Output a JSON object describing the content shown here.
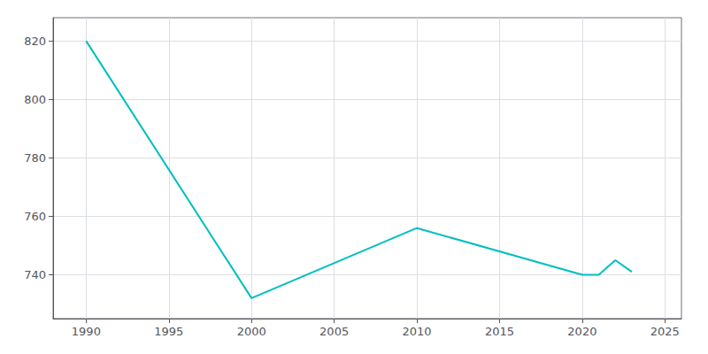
{
  "chart_data": {
    "type": "line",
    "x": [
      1990,
      2000,
      2010,
      2020,
      2021,
      2022,
      2023
    ],
    "values": [
      820,
      732,
      756,
      740,
      740,
      745,
      741
    ],
    "color": "#00BEBE",
    "xlim": [
      1988,
      2026
    ],
    "xticks": [
      1990,
      1995,
      2000,
      2005,
      2010,
      2015,
      2020,
      2025
    ],
    "ylim": [
      725,
      828
    ],
    "yticks": [
      740,
      760,
      780,
      800,
      820
    ],
    "grid": true
  }
}
